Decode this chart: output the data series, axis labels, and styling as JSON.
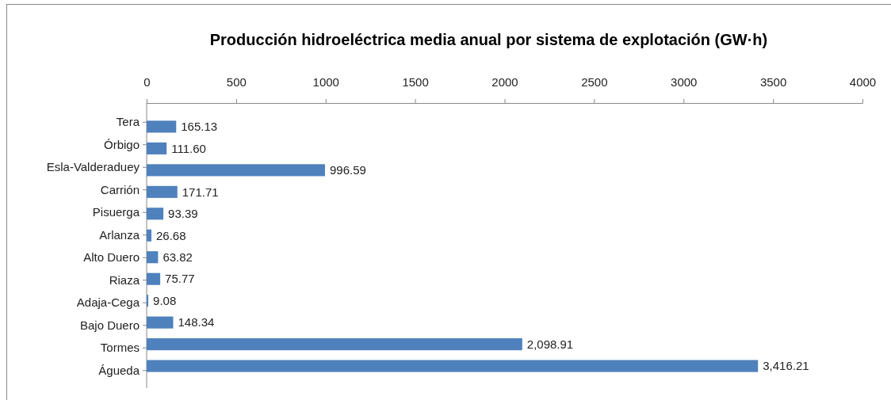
{
  "chart_data": {
    "type": "bar",
    "orientation": "horizontal",
    "title": "Producción hidroeléctrica media anual por sistema de explotación (GW·h)",
    "categories": [
      "Tera",
      "Órbigo",
      "Esla-Valderaduey",
      "Carrión",
      "Pisuerga",
      "Arlanza",
      "Alto Duero",
      "Riaza",
      "Adaja-Cega",
      "Bajo Duero",
      "Tormes",
      "Águeda"
    ],
    "values": [
      165.13,
      111.6,
      996.59,
      171.71,
      93.39,
      26.68,
      63.82,
      75.77,
      9.08,
      148.34,
      2098.91,
      3416.21
    ],
    "value_labels": [
      "165.13",
      "111.60",
      "996.59",
      "171.71",
      "93.39",
      "26.68",
      "63.82",
      "75.77",
      "9.08",
      "148.34",
      "2,098.91",
      "3,416.21"
    ],
    "color": "#4f81bd",
    "xlim": [
      0,
      4000
    ],
    "xticks": [
      0,
      500,
      1000,
      1500,
      2000,
      2500,
      3000,
      3500,
      4000
    ]
  }
}
